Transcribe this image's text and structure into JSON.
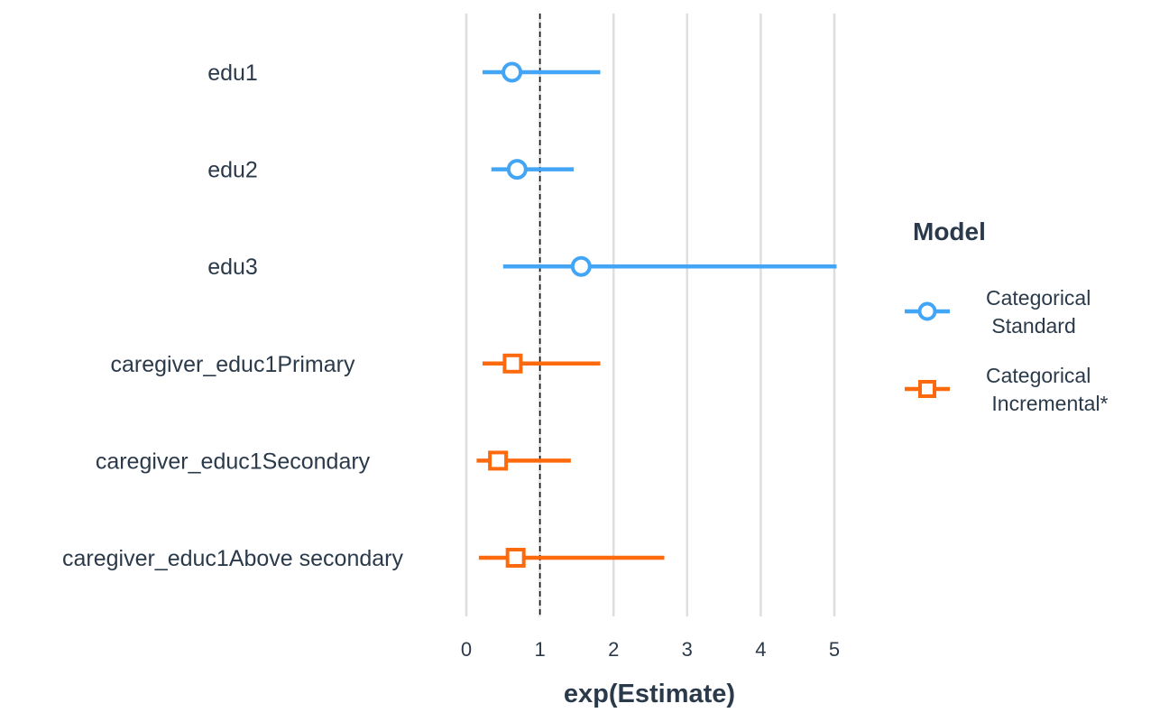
{
  "chart_data": {
    "type": "forest",
    "xlabel": "exp(Estimate)",
    "xlim": [
      0,
      5.1
    ],
    "x_ticks": [
      0,
      1,
      2,
      3,
      4,
      5
    ],
    "reference_line": 1,
    "grid": true,
    "categories": [
      "edu1",
      "edu2",
      "edu3",
      "caregiver_educ1Primary",
      "caregiver_educ1Secondary",
      "caregiver_educ1Above secondary"
    ],
    "legend": {
      "title": "Model",
      "placement": "right"
    },
    "series": [
      {
        "name": "Categorical\n Standard",
        "color": "#42a5f5",
        "marker": "circle",
        "points": [
          {
            "category": "edu1",
            "estimate": 0.62,
            "lower": 0.22,
            "upper": 1.82
          },
          {
            "category": "edu2",
            "estimate": 0.69,
            "lower": 0.34,
            "upper": 1.46
          },
          {
            "category": "edu3",
            "estimate": 1.56,
            "lower": 0.5,
            "upper": 5.03
          }
        ]
      },
      {
        "name": "Categorical\n Incremental*",
        "color": "#fd6a0d",
        "marker": "square",
        "points": [
          {
            "category": "caregiver_educ1Primary",
            "estimate": 0.63,
            "lower": 0.22,
            "upper": 1.82
          },
          {
            "category": "caregiver_educ1Secondary",
            "estimate": 0.43,
            "lower": 0.14,
            "upper": 1.42
          },
          {
            "category": "caregiver_educ1Above secondary",
            "estimate": 0.67,
            "lower": 0.17,
            "upper": 2.69
          }
        ]
      }
    ]
  }
}
